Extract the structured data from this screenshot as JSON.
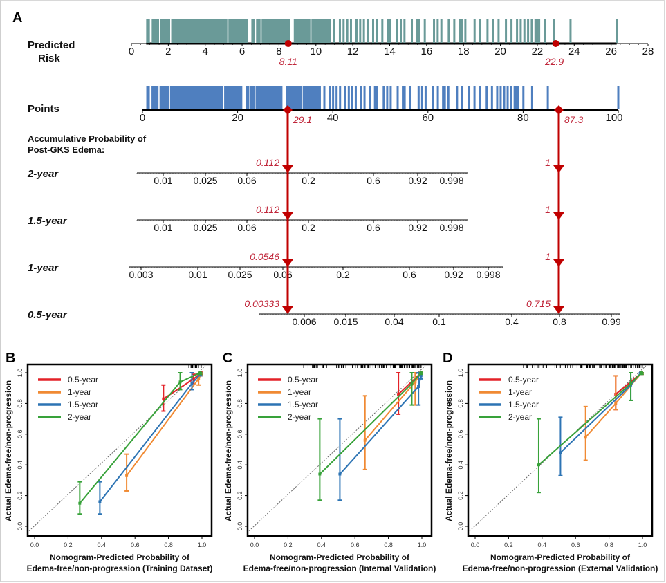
{
  "colors": {
    "risk_bar": "#6a9a98",
    "points_bar": "#4f7fbf",
    "marker": "#c00000",
    "marker_text": "#c0263a",
    "series": {
      "0.5-year": "#e32228",
      "1-year": "#f08a33",
      "1.5-year": "#2d74b4",
      "2-year": "#38a23a"
    }
  },
  "chart_data": [
    {
      "type": "nomogram",
      "panel": "A",
      "rows": [
        {
          "label_lines": [
            "Predicted",
            "Risk"
          ],
          "axis": {
            "min": 0,
            "max": 28,
            "ticks": [
              0,
              2,
              4,
              6,
              8,
              10,
              12,
              14,
              16,
              18,
              20,
              22,
              24,
              26,
              28
            ]
          },
          "rug_range": [
            0.8,
            26.3
          ],
          "rug_dense_segments": [
            [
              0.8,
              1.0
            ],
            [
              1.1,
              6.3
            ],
            [
              6.5,
              8.6
            ],
            [
              8.8,
              10.8
            ]
          ],
          "rug_lines": [
            11.0,
            11.3,
            11.5,
            11.7,
            11.9,
            12.2,
            12.4,
            12.6,
            12.8,
            13.1,
            13.3,
            13.6,
            13.9,
            14.0,
            14.4,
            14.6,
            14.8,
            15.2,
            15.5,
            15.6,
            15.9,
            16.4,
            16.6,
            16.8,
            17.2,
            17.5,
            17.8,
            17.9,
            18.1,
            18.6,
            18.9,
            19.3,
            19.6,
            19.9,
            20.3,
            20.6,
            20.9,
            21.1,
            21.3,
            21.5,
            21.7,
            21.9,
            22.0,
            22.1,
            22.4,
            22.9,
            23.8,
            26.3
          ],
          "markers": [
            {
              "value": 8.11,
              "label": "8.11",
              "shape": "circle"
            },
            {
              "value": 22.9,
              "label": "22.9",
              "shape": "circle"
            }
          ]
        },
        {
          "label_lines": [
            "Points"
          ],
          "axis": {
            "min": 0,
            "max": 100,
            "ticks": [
              0,
              20,
              40,
              60,
              80,
              100
            ]
          },
          "rug_range": [
            0.8,
            100
          ],
          "markers": [
            {
              "value": 29.1,
              "label": "29.1",
              "shape": "diamond"
            },
            {
              "value": 87.3,
              "label": "87.3",
              "shape": "diamond"
            }
          ]
        }
      ],
      "probability_title": [
        "Accumulative Probability of",
        "Post-GKS Edema:"
      ],
      "probability_rows": [
        {
          "label": "2-year",
          "ticks": [
            "0.01",
            "0.025",
            "0.06",
            "0.2",
            "0.6",
            "0.92",
            "0.998"
          ],
          "marker_labels": [
            "0.112",
            "1"
          ]
        },
        {
          "label": "1.5-year",
          "ticks": [
            "0.01",
            "0.025",
            "0.06",
            "0.2",
            "0.6",
            "0.92",
            "0.998"
          ],
          "marker_labels": [
            "0.112",
            "1"
          ]
        },
        {
          "label": "1-year",
          "ticks": [
            "0.003",
            "0.01",
            "0.025",
            "0.06",
            "0.2",
            "0.6",
            "0.92",
            "0.998"
          ],
          "marker_labels": [
            "0.0546",
            "1"
          ]
        },
        {
          "label": "0.5-year",
          "ticks": [
            "0.006",
            "0.015",
            "0.04",
            "0.1",
            "0.4",
            "0.8",
            "0.99"
          ],
          "marker_labels": [
            "0.00333",
            "0.715"
          ]
        }
      ]
    },
    {
      "type": "line",
      "panel": "B",
      "xlabel": [
        "Nomogram-Predicted Probability of",
        "Edema-free/non-progression (Training Dataset)"
      ],
      "ylabel": "Actual Edema-free/non-progression",
      "xlim": [
        0,
        1
      ],
      "ylim": [
        0,
        1
      ],
      "xticks": [
        "0.0",
        "0.2",
        "0.4",
        "0.6",
        "0.8",
        "1.0"
      ],
      "yticks": [
        "0.0",
        "0.2",
        "0.4",
        "0.6",
        "0.8",
        "1.0"
      ],
      "legend": [
        "0.5-year",
        "1-year",
        "1.5-year",
        "2-year"
      ],
      "legend_position": "top-left",
      "reference_line": "diagonal",
      "series": [
        {
          "name": "0.5-year",
          "points": [
            [
              0.77,
              0.83,
              0.75,
              0.92
            ],
            [
              0.95,
              0.96,
              0.93,
              0.99
            ],
            [
              0.995,
              1.0,
              0.99,
              1.0
            ]
          ]
        },
        {
          "name": "1-year",
          "points": [
            [
              0.55,
              0.33,
              0.23,
              0.47
            ],
            [
              0.98,
              0.96,
              0.92,
              0.99
            ],
            [
              0.995,
              0.99,
              0.98,
              1.0
            ]
          ]
        },
        {
          "name": "1.5-year",
          "points": [
            [
              0.39,
              0.16,
              0.08,
              0.29
            ],
            [
              0.94,
              0.93,
              0.89,
              1.0
            ],
            [
              0.99,
              0.99,
              0.98,
              1.0
            ]
          ]
        },
        {
          "name": "2-year",
          "points": [
            [
              0.27,
              0.15,
              0.08,
              0.29
            ],
            [
              0.87,
              0.94,
              0.89,
              1.0
            ],
            [
              0.99,
              1.0,
              0.99,
              1.0
            ]
          ]
        }
      ]
    },
    {
      "type": "line",
      "panel": "C",
      "xlabel": [
        "Nomogram-Predicted Probability of",
        "Edema-free/non-progression (Internal Validation)"
      ],
      "ylabel": "Actual Edema-free/non-progression",
      "xlim": [
        0,
        1
      ],
      "ylim": [
        0,
        1
      ],
      "xticks": [
        "0.0",
        "0.2",
        "0.4",
        "0.6",
        "0.8",
        "1.0"
      ],
      "yticks": [
        "0.0",
        "0.2",
        "0.4",
        "0.6",
        "0.8",
        "1.0"
      ],
      "legend": [
        "0.5-year",
        "1-year",
        "1.5-year",
        "2-year"
      ],
      "legend_position": "top-left",
      "reference_line": "diagonal",
      "series": [
        {
          "name": "0.5-year",
          "points": [
            [
              0.86,
              0.86,
              0.73,
              1.0
            ],
            [
              0.995,
              1.0,
              0.99,
              1.0
            ]
          ]
        },
        {
          "name": "1-year",
          "points": [
            [
              0.66,
              0.56,
              0.37,
              0.85
            ],
            [
              0.96,
              0.94,
              0.79,
              1.0
            ],
            [
              0.995,
              1.0,
              0.99,
              1.0
            ]
          ]
        },
        {
          "name": "1.5-year",
          "points": [
            [
              0.51,
              0.34,
              0.17,
              0.7
            ],
            [
              0.98,
              0.91,
              0.79,
              1.0
            ],
            [
              0.995,
              0.98,
              0.96,
              1.0
            ]
          ]
        },
        {
          "name": "2-year",
          "points": [
            [
              0.39,
              0.34,
              0.17,
              0.7
            ],
            [
              0.94,
              0.93,
              0.79,
              1.0
            ],
            [
              0.995,
              1.0,
              0.99,
              1.0
            ]
          ]
        }
      ]
    },
    {
      "type": "line",
      "panel": "D",
      "xlabel": [
        "Nomogram-Predicted Probability of",
        "Edema-free/non-progression (External Validation)"
      ],
      "ylabel": "Actual Edema-free/non-progression",
      "xlim": [
        0,
        1
      ],
      "ylim": [
        0,
        1
      ],
      "xticks": [
        "0.0",
        "0.2",
        "0.4",
        "0.6",
        "0.8",
        "1.0"
      ],
      "yticks": [
        "0.0",
        "0.2",
        "0.4",
        "0.6",
        "0.8",
        "1.0"
      ],
      "legend": [
        "0.5-year",
        "1-year",
        "1.5-year",
        "2-year"
      ],
      "legend_position": "top-left",
      "reference_line": "diagonal",
      "series": [
        {
          "name": "0.5-year",
          "points": [
            [
              0.84,
              0.86,
              0.76,
              0.98
            ],
            [
              0.995,
              1.0,
              0.99,
              1.0
            ]
          ]
        },
        {
          "name": "1-year",
          "points": [
            [
              0.66,
              0.58,
              0.43,
              0.78
            ],
            [
              0.84,
              0.8,
              0.76,
              0.98
            ],
            [
              0.995,
              1.0,
              0.99,
              1.0
            ]
          ]
        },
        {
          "name": "1.5-year",
          "points": [
            [
              0.51,
              0.48,
              0.33,
              0.71
            ],
            [
              0.93,
              0.92,
              0.82,
              1.0
            ],
            [
              0.99,
              1.0,
              0.99,
              1.0
            ]
          ]
        },
        {
          "name": "2-year",
          "points": [
            [
              0.38,
              0.4,
              0.22,
              0.7
            ],
            [
              0.93,
              0.93,
              0.82,
              1.0
            ],
            [
              0.995,
              1.0,
              0.99,
              1.0
            ]
          ]
        }
      ]
    }
  ]
}
